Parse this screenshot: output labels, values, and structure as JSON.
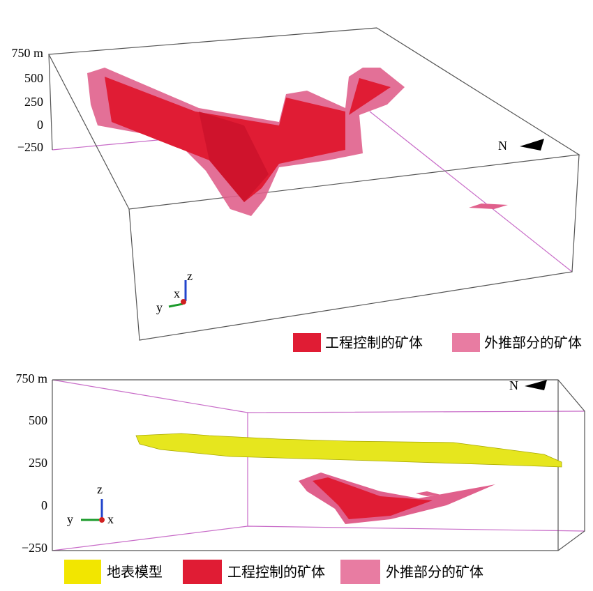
{
  "panels": [
    {
      "axis_labels": [
        "750 m",
        "500",
        "250",
        "0",
        "−250"
      ],
      "north": "N",
      "triad": {
        "x": "x",
        "y": "y",
        "z": "z"
      },
      "legend": [
        "工程控制的矿体",
        "外推部分的矿体"
      ]
    },
    {
      "axis_labels": [
        "750 m",
        "500",
        "250",
        "0",
        "−250"
      ],
      "north": "N",
      "triad": {
        "x": "x",
        "y": "y",
        "z": "z"
      },
      "legend": [
        "地表模型",
        "工程控制的矿体",
        "外推部分的矿体"
      ]
    }
  ]
}
